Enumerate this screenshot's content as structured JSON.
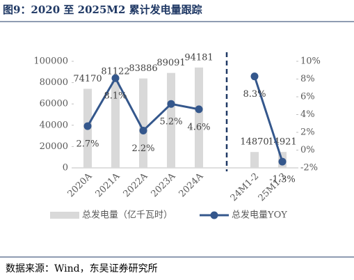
{
  "chart_data": {
    "type": "bar-line",
    "title": "图9：2020 至 2025M2 累计发电量跟踪",
    "source": "数据来源：Wind，东吴证券研究所",
    "categories": [
      "2020A",
      "2021A",
      "2022A",
      "2023A",
      "2024A",
      null,
      "24M1-2",
      "25M1-2"
    ],
    "series": [
      {
        "name": "总发电量（亿千瓦时）",
        "type": "bar",
        "color": "#d9d9d9",
        "values": [
          74170,
          81122,
          83886,
          89091,
          94181,
          null,
          14870,
          14921
        ]
      },
      {
        "name": "总发电量YOY",
        "type": "line",
        "axis": "y2",
        "color": "#34578c",
        "values": [
          2.7,
          8.1,
          2.2,
          5.2,
          4.6,
          null,
          8.3,
          -1.3
        ],
        "value_labels": [
          "2.7%",
          "8.1%",
          "2.2%",
          "5.2%",
          "4.6%",
          null,
          "8.3%",
          "-1.3%"
        ]
      }
    ],
    "ylim": [
      0,
      100000
    ],
    "yticks": [
      0,
      20000,
      40000,
      60000,
      80000,
      100000
    ],
    "y2lim": [
      -2,
      10
    ],
    "y2ticks": [
      {
        "value": -2,
        "label": "-2%"
      },
      {
        "value": 0,
        "label": "0%"
      },
      {
        "value": 2,
        "label": "2%"
      },
      {
        "value": 4,
        "label": "4%"
      },
      {
        "value": 6,
        "label": "6%"
      },
      {
        "value": 8,
        "label": "8%"
      },
      {
        "value": 10,
        "label": "10%"
      }
    ],
    "legend": "bottom"
  }
}
